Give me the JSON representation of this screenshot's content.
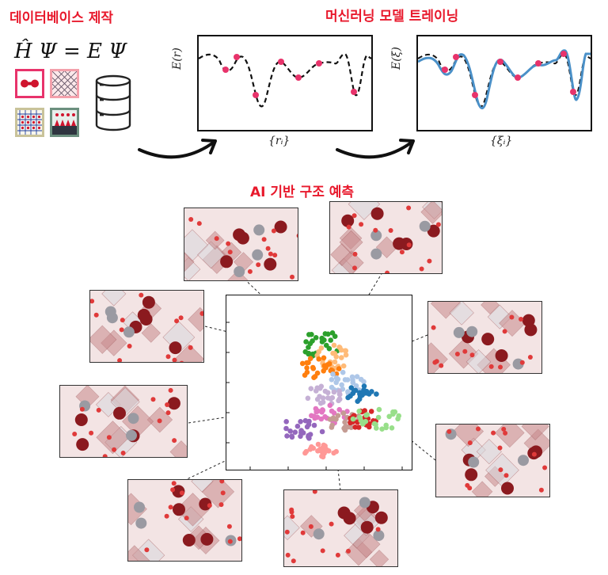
{
  "headings": {
    "database": "데이터베이스 제작",
    "training": "머신러닝 모델 트레이닝",
    "prediction": "AI 기반 구조 예측"
  },
  "equation": "Ĥ Ψ = E Ψ",
  "plot_left": {
    "ylabel": "E(r)",
    "xlabel": "{rᵢ}"
  },
  "plot_right": {
    "ylabel": "E(ξ)",
    "xlabel": "{ξᵢ}"
  },
  "colors": {
    "accent_red": "#e8192c",
    "point_pink": "#e8336b",
    "fit_blue": "#4a90c8",
    "atom_dark_red": "#8b1a1f",
    "atom_gray": "#9a9aa2"
  },
  "icons": [
    "molecule-thumb",
    "lattice-thumb",
    "grid-thumb",
    "layered-thumb",
    "database-icon"
  ],
  "scatter_clusters": [
    {
      "name": "green",
      "color": "#2ca02c"
    },
    {
      "name": "light-orange",
      "color": "#ffbb78"
    },
    {
      "name": "orange",
      "color": "#ff7f0e"
    },
    {
      "name": "light-blue",
      "color": "#aec7e8"
    },
    {
      "name": "blue",
      "color": "#1f77b4"
    },
    {
      "name": "light-purple",
      "color": "#c5b0d5"
    },
    {
      "name": "purple",
      "color": "#9467bd"
    },
    {
      "name": "pink",
      "color": "#e377c2"
    },
    {
      "name": "brown",
      "color": "#c49c94"
    },
    {
      "name": "dark-red",
      "color": "#d62728"
    },
    {
      "name": "light-green",
      "color": "#98df8a"
    },
    {
      "name": "rose",
      "color": "#ff9896"
    }
  ]
}
